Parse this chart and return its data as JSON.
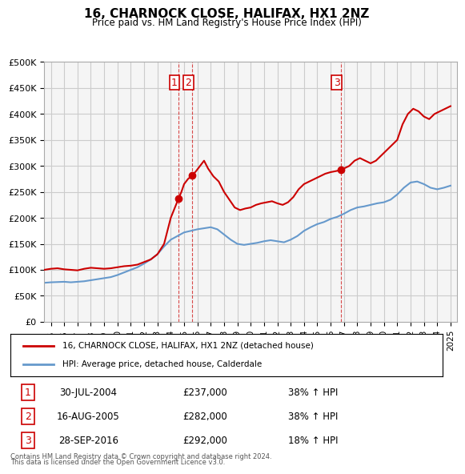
{
  "title": "16, CHARNOCK CLOSE, HALIFAX, HX1 2NZ",
  "subtitle": "Price paid vs. HM Land Registry's House Price Index (HPI)",
  "legend_house": "16, CHARNOCK CLOSE, HALIFAX, HX1 2NZ (detached house)",
  "legend_hpi": "HPI: Average price, detached house, Calderdale",
  "footnote1": "Contains HM Land Registry data © Crown copyright and database right 2024.",
  "footnote2": "This data is licensed under the Open Government Licence v3.0.",
  "transactions": [
    {
      "num": 1,
      "date": "30-JUL-2004",
      "price": "£237,000",
      "hpi": "38% ↑ HPI",
      "year": 2004.58
    },
    {
      "num": 2,
      "date": "16-AUG-2005",
      "price": "£282,000",
      "hpi": "38% ↑ HPI",
      "year": 2005.63
    },
    {
      "num": 3,
      "date": "28-SEP-2016",
      "price": "£292,000",
      "hpi": "18% ↑ HPI",
      "year": 2016.75
    }
  ],
  "red_line_color": "#cc0000",
  "blue_line_color": "#6699cc",
  "grid_color": "#cccccc",
  "background_color": "#ffffff",
  "plot_bg_color": "#f5f5f5",
  "ylim": [
    0,
    500000
  ],
  "yticks": [
    0,
    50000,
    100000,
    150000,
    200000,
    250000,
    300000,
    350000,
    400000,
    450000,
    500000
  ],
  "xlim_start": 1994.5,
  "xlim_end": 2025.5,
  "red_x": [
    1994.5,
    1995.0,
    1995.5,
    1996.0,
    1996.5,
    1997.0,
    1997.5,
    1998.0,
    1998.5,
    1999.0,
    1999.5,
    2000.0,
    2000.5,
    2001.0,
    2001.5,
    2002.0,
    2002.5,
    2003.0,
    2003.5,
    2004.0,
    2004.58,
    2004.8,
    2005.0,
    2005.3,
    2005.63,
    2005.9,
    2006.2,
    2006.5,
    2006.8,
    2007.2,
    2007.6,
    2008.0,
    2008.4,
    2008.8,
    2009.2,
    2009.6,
    2010.0,
    2010.4,
    2010.8,
    2011.2,
    2011.6,
    2012.0,
    2012.4,
    2012.8,
    2013.2,
    2013.6,
    2014.0,
    2014.4,
    2014.8,
    2015.2,
    2015.6,
    2016.0,
    2016.4,
    2016.75,
    2017.0,
    2017.4,
    2017.8,
    2018.2,
    2018.6,
    2019.0,
    2019.4,
    2019.8,
    2020.2,
    2020.6,
    2021.0,
    2021.4,
    2021.8,
    2022.2,
    2022.6,
    2023.0,
    2023.4,
    2023.8,
    2024.2,
    2024.6,
    2025.0
  ],
  "red_y": [
    100000,
    102000,
    103000,
    101000,
    100000,
    99000,
    102000,
    104000,
    103000,
    102000,
    103000,
    105000,
    107000,
    108000,
    110000,
    115000,
    120000,
    130000,
    150000,
    200000,
    237000,
    250000,
    265000,
    275000,
    282000,
    290000,
    300000,
    310000,
    295000,
    280000,
    270000,
    250000,
    235000,
    220000,
    215000,
    218000,
    220000,
    225000,
    228000,
    230000,
    232000,
    228000,
    225000,
    230000,
    240000,
    255000,
    265000,
    270000,
    275000,
    280000,
    285000,
    288000,
    290000,
    292000,
    295000,
    300000,
    310000,
    315000,
    310000,
    305000,
    310000,
    320000,
    330000,
    340000,
    350000,
    380000,
    400000,
    410000,
    405000,
    395000,
    390000,
    400000,
    405000,
    410000,
    415000
  ],
  "blue_x": [
    1994.5,
    1995.0,
    1995.5,
    1996.0,
    1996.5,
    1997.0,
    1997.5,
    1998.0,
    1998.5,
    1999.0,
    1999.5,
    2000.0,
    2000.5,
    2001.0,
    2001.5,
    2002.0,
    2002.5,
    2003.0,
    2003.5,
    2004.0,
    2004.5,
    2005.0,
    2005.5,
    2006.0,
    2006.5,
    2007.0,
    2007.5,
    2008.0,
    2008.5,
    2009.0,
    2009.5,
    2010.0,
    2010.5,
    2011.0,
    2011.5,
    2012.0,
    2012.5,
    2013.0,
    2013.5,
    2014.0,
    2014.5,
    2015.0,
    2015.5,
    2016.0,
    2016.5,
    2017.0,
    2017.5,
    2018.0,
    2018.5,
    2019.0,
    2019.5,
    2020.0,
    2020.5,
    2021.0,
    2021.5,
    2022.0,
    2022.5,
    2023.0,
    2023.5,
    2024.0,
    2024.5,
    2025.0
  ],
  "blue_y": [
    75000,
    76000,
    76500,
    77000,
    76000,
    77000,
    78000,
    80000,
    82000,
    84000,
    86000,
    90000,
    95000,
    100000,
    105000,
    112000,
    120000,
    130000,
    145000,
    158000,
    165000,
    172000,
    175000,
    178000,
    180000,
    182000,
    178000,
    168000,
    158000,
    150000,
    148000,
    150000,
    152000,
    155000,
    157000,
    155000,
    153000,
    158000,
    165000,
    175000,
    182000,
    188000,
    192000,
    198000,
    202000,
    208000,
    215000,
    220000,
    222000,
    225000,
    228000,
    230000,
    235000,
    245000,
    258000,
    268000,
    270000,
    265000,
    258000,
    255000,
    258000,
    262000
  ],
  "transaction_years": [
    2004.58,
    2005.63,
    2016.75
  ],
  "transaction_prices": [
    237000,
    282000,
    292000
  ],
  "marker_size": 8
}
